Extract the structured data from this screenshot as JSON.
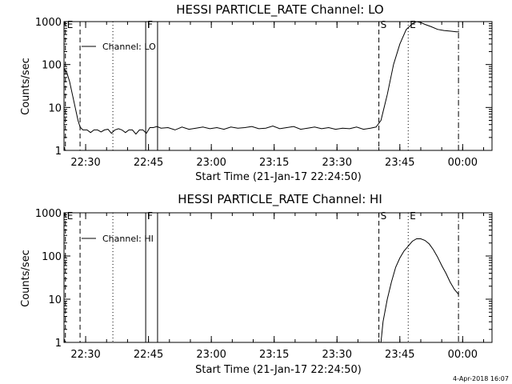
{
  "timestamp": "4-Apr-2018 16:07",
  "chart_data": [
    {
      "type": "line",
      "title": "HESSI PARTICLE_RATE Channel: LO",
      "xlabel": "Start Time (21-Jan-17 22:24:50)",
      "ylabel": "Counts/sec",
      "y_scale": "log",
      "ylim": [
        1,
        1000
      ],
      "ytick_labels": [
        "1",
        "10",
        "100",
        "1000"
      ],
      "xlim": [
        "22:24:50",
        "00:07:00"
      ],
      "xtick_labels": [
        "22:30",
        "22:45",
        "23:00",
        "23:15",
        "23:30",
        "23:45",
        "00:00"
      ],
      "legend": "Channel: LO",
      "markers": [
        {
          "label": "E",
          "time": "22:25:10",
          "style": "dashed"
        },
        {
          "label": "",
          "time": "22:28:40",
          "style": "dashed"
        },
        {
          "label": "",
          "time": "22:36:30",
          "style": "dotted"
        },
        {
          "label": "F",
          "time": "22:44:20",
          "style": "solid"
        },
        {
          "label": "",
          "time": "22:47:10",
          "style": "solid"
        },
        {
          "label": "S",
          "time": "23:40:00",
          "style": "dashed"
        },
        {
          "label": "E",
          "time": "23:47:00",
          "style": "dotted"
        },
        {
          "label": "",
          "time": "23:59:00",
          "style": "dash-dot"
        }
      ],
      "series": [
        {
          "x": [
            "22:24:50",
            "22:25:30",
            "22:26:10",
            "22:26:50",
            "22:27:30",
            "22:28:10",
            "22:28:40",
            "22:29:20",
            "22:30:20",
            "22:31:10",
            "22:32:00",
            "22:32:50",
            "22:33:40",
            "22:34:30",
            "22:35:20",
            "22:36:10",
            "22:37:00",
            "22:37:50",
            "22:38:40",
            "22:39:30",
            "22:40:20",
            "22:41:10",
            "22:42:00",
            "22:42:50",
            "22:43:40",
            "22:44:30",
            "22:45:20",
            "22:46:10",
            "22:47:00",
            "22:48:00",
            "22:49:40",
            "22:51:20",
            "22:53:00",
            "22:54:40",
            "22:56:20",
            "22:58:00",
            "22:59:40",
            "23:01:20",
            "23:03:00",
            "23:04:40",
            "23:06:20",
            "23:08:00",
            "23:09:40",
            "23:11:20",
            "23:13:00",
            "23:14:40",
            "23:16:20",
            "23:18:00",
            "23:19:40",
            "23:21:20",
            "23:23:00",
            "23:24:40",
            "23:26:20",
            "23:28:00",
            "23:29:40",
            "23:31:20",
            "23:33:00",
            "23:34:40",
            "23:36:20",
            "23:38:00",
            "23:39:20",
            "23:40:30",
            "23:42:00",
            "23:43:30",
            "23:45:00",
            "23:46:30",
            "23:48:00",
            "23:49:00",
            "23:50:00",
            "23:51:00",
            "23:52:30",
            "23:54:00",
            "23:55:30",
            "23:57:00",
            "23:58:30",
            "23:59:10"
          ],
          "y": [
            80,
            65,
            40,
            20,
            10,
            5,
            3.5,
            3,
            3,
            2.6,
            3,
            3,
            2.7,
            3,
            3.1,
            2.5,
            3,
            3.2,
            3,
            2.6,
            3,
            3,
            2.4,
            3,
            3,
            2.5,
            3.4,
            3.4,
            3.6,
            3.3,
            3.4,
            3,
            3.5,
            3.1,
            3.3,
            3.5,
            3.2,
            3.4,
            3.1,
            3.5,
            3.3,
            3.4,
            3.6,
            3.2,
            3.3,
            3.7,
            3.2,
            3.4,
            3.6,
            3.1,
            3.3,
            3.5,
            3.2,
            3.4,
            3.1,
            3.3,
            3.2,
            3.5,
            3.1,
            3.3,
            3.5,
            5,
            20,
            100,
            300,
            650,
            900,
            1000,
            950,
            860,
            760,
            660,
            620,
            600,
            580,
            580
          ]
        }
      ]
    },
    {
      "type": "line",
      "title": "HESSI PARTICLE_RATE Channel: HI",
      "xlabel": "Start Time (21-Jan-17 22:24:50)",
      "ylabel": "Counts/sec",
      "y_scale": "log",
      "ylim": [
        1,
        1000
      ],
      "ytick_labels": [
        "1",
        "10",
        "100",
        "1000"
      ],
      "xlim": [
        "22:24:50",
        "00:07:00"
      ],
      "xtick_labels": [
        "22:30",
        "22:45",
        "23:00",
        "23:15",
        "23:30",
        "23:45",
        "00:00"
      ],
      "legend": "Channel: HI",
      "markers": [
        {
          "label": "E",
          "time": "22:25:10",
          "style": "dashed"
        },
        {
          "label": "",
          "time": "22:28:40",
          "style": "dashed"
        },
        {
          "label": "",
          "time": "22:36:30",
          "style": "dotted"
        },
        {
          "label": "F",
          "time": "22:44:20",
          "style": "solid"
        },
        {
          "label": "",
          "time": "22:47:10",
          "style": "solid"
        },
        {
          "label": "S",
          "time": "23:40:00",
          "style": "dashed"
        },
        {
          "label": "E",
          "time": "23:47:00",
          "style": "dotted"
        },
        {
          "label": "",
          "time": "23:59:00",
          "style": "dash-dot"
        }
      ],
      "series": [
        {
          "x": [
            "23:40:30",
            "23:41:00",
            "23:42:00",
            "23:43:00",
            "23:44:00",
            "23:45:00",
            "23:46:00",
            "23:47:00",
            "23:48:00",
            "23:49:00",
            "23:50:00",
            "23:51:00",
            "23:52:00",
            "23:53:00",
            "23:54:00",
            "23:55:00",
            "23:56:00",
            "23:57:00",
            "23:58:00",
            "23:59:00"
          ],
          "y": [
            1,
            3,
            10,
            25,
            55,
            90,
            130,
            170,
            220,
            250,
            250,
            230,
            190,
            140,
            95,
            60,
            40,
            25,
            17,
            13
          ]
        }
      ]
    }
  ]
}
